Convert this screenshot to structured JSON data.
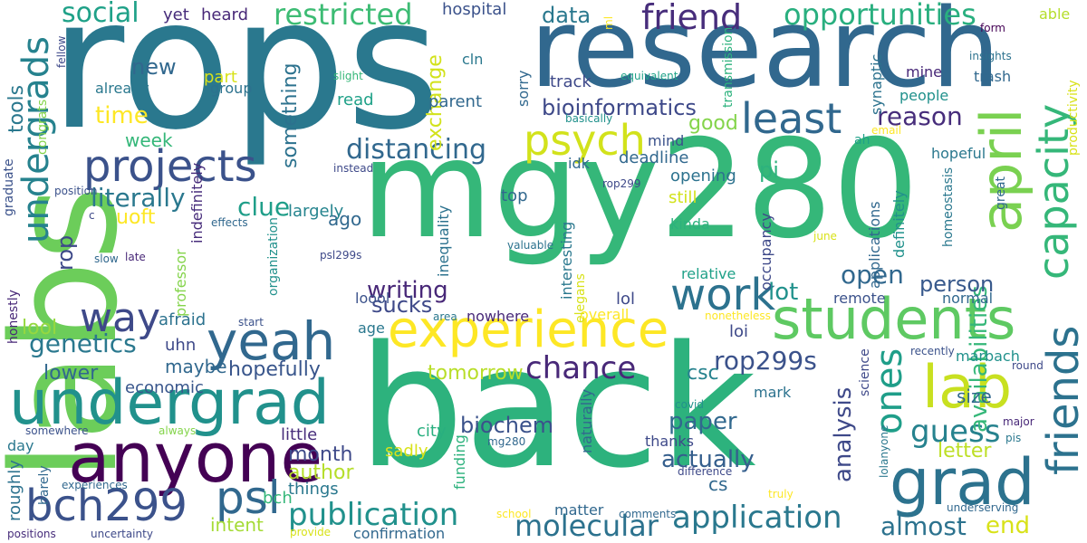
{
  "words": [
    {
      "text": "rops",
      "color": "#2a788e"
    },
    {
      "text": "labs",
      "color": "#6ccd5a"
    },
    {
      "text": "back",
      "color": "#2db27d"
    },
    {
      "text": "mgy280",
      "color": "#35b779"
    },
    {
      "text": "research",
      "color": "#31688e"
    },
    {
      "text": "anyone",
      "color": "#440154"
    },
    {
      "text": "undergrad",
      "color": "#21918c"
    },
    {
      "text": "experience",
      "color": "#fde725"
    },
    {
      "text": "students",
      "color": "#5ec962"
    },
    {
      "text": "lab",
      "color": "#c8e020"
    },
    {
      "text": "yeah",
      "color": "#31688e"
    },
    {
      "text": "april",
      "color": "#7ad151"
    },
    {
      "text": "capacity",
      "color": "#35b779"
    },
    {
      "text": "friends",
      "color": "#2c728e"
    },
    {
      "text": "grad",
      "color": "#2c728e"
    },
    {
      "text": "projects",
      "color": "#3b528b"
    },
    {
      "text": "psych",
      "color": "#d2e21b"
    },
    {
      "text": "work",
      "color": "#2c728e"
    },
    {
      "text": "least",
      "color": "#31688e"
    },
    {
      "text": "bch299",
      "color": "#3b528b"
    },
    {
      "text": "psl",
      "color": "#31688e"
    },
    {
      "text": "way",
      "color": "#3e4989"
    },
    {
      "text": "undergrads",
      "color": "#26828e"
    },
    {
      "text": "ones",
      "color": "#1f9e89"
    },
    {
      "text": "friend",
      "color": "#472d7b"
    },
    {
      "text": "restricted",
      "color": "#3dbc74"
    },
    {
      "text": "opportunities",
      "color": "#29af7f"
    },
    {
      "text": "social",
      "color": "#1fa188"
    },
    {
      "text": "chance",
      "color": "#482878"
    },
    {
      "text": "application",
      "color": "#2a788e"
    },
    {
      "text": "publication",
      "color": "#21918c"
    },
    {
      "text": "molecular",
      "color": "#2c728e"
    },
    {
      "text": "guess",
      "color": "#26828e"
    },
    {
      "text": "distancing",
      "color": "#31688e"
    },
    {
      "text": "genetics",
      "color": "#2a788e"
    },
    {
      "text": "availabilities",
      "color": "#35b779"
    },
    {
      "text": "rop299s",
      "color": "#3b528b"
    },
    {
      "text": "analysis",
      "color": "#3e4989"
    },
    {
      "text": "open",
      "color": "#31688e"
    },
    {
      "text": "time",
      "color": "#fde725"
    },
    {
      "text": "literally",
      "color": "#2a788e"
    },
    {
      "text": "clue",
      "color": "#1f9e89"
    },
    {
      "text": "writing",
      "color": "#482878"
    },
    {
      "text": "reason",
      "color": "#472d7b"
    },
    {
      "text": "almost",
      "color": "#2c728e"
    },
    {
      "text": "end",
      "color": "#d8e219"
    },
    {
      "text": "paper",
      "color": "#31688e"
    },
    {
      "text": "hopefully",
      "color": "#39568c"
    },
    {
      "text": "sucks",
      "color": "#3e4989"
    },
    {
      "text": "actually",
      "color": "#355f8d"
    },
    {
      "text": "lot",
      "color": "#21918c"
    },
    {
      "text": "person",
      "color": "#38598c"
    },
    {
      "text": "new",
      "color": "#31688e"
    },
    {
      "text": "data",
      "color": "#2a788e"
    },
    {
      "text": "exchange",
      "color": "#d2e21b"
    },
    {
      "text": "bioinformatics",
      "color": "#3e4989"
    },
    {
      "text": "tomorrow",
      "color": "#b8de29"
    },
    {
      "text": "rop",
      "color": "#3e4989"
    },
    {
      "text": "uoft",
      "color": "#fde725"
    },
    {
      "text": "good",
      "color": "#84d44b"
    },
    {
      "text": "pi",
      "color": "#2db27d"
    },
    {
      "text": "biochem",
      "color": "#3b528b"
    },
    {
      "text": "author",
      "color": "#b5de2b"
    },
    {
      "text": "month",
      "color": "#3e4989"
    },
    {
      "text": "csc",
      "color": "#26828e"
    },
    {
      "text": "letter",
      "color": "#bddf26"
    },
    {
      "text": "size",
      "color": "#31688e"
    },
    {
      "text": "tools",
      "color": "#2a788e"
    },
    {
      "text": "week",
      "color": "#35b779"
    },
    {
      "text": "something",
      "color": "#2c728e"
    },
    {
      "text": "ago",
      "color": "#31688e"
    },
    {
      "text": "largely",
      "color": "#25848e"
    },
    {
      "text": "maybe",
      "color": "#31688e"
    },
    {
      "text": "uhn",
      "color": "#3e4989"
    },
    {
      "text": "lower",
      "color": "#31688e"
    },
    {
      "text": "lool",
      "color": "#95d840"
    },
    {
      "text": "afraid",
      "color": "#2c728e"
    },
    {
      "text": "economic",
      "color": "#39568c"
    },
    {
      "text": "little",
      "color": "#472d7b"
    },
    {
      "text": "things",
      "color": "#2a788e"
    },
    {
      "text": "intent",
      "color": "#a5db36"
    },
    {
      "text": "bch",
      "color": "#35b779"
    },
    {
      "text": "cs",
      "color": "#31688e"
    },
    {
      "text": "city",
      "color": "#29af7f"
    },
    {
      "text": "sadly",
      "color": "#d8e219"
    },
    {
      "text": "already",
      "color": "#2a788e"
    },
    {
      "text": "heard",
      "color": "#482878"
    },
    {
      "text": "yet",
      "color": "#472d7b"
    },
    {
      "text": "hospital",
      "color": "#3b528b"
    },
    {
      "text": "part",
      "color": "#d8e219"
    },
    {
      "text": "group",
      "color": "#2c728e"
    },
    {
      "text": "read",
      "color": "#1fa188"
    },
    {
      "text": "parent",
      "color": "#31688e"
    },
    {
      "text": "track",
      "color": "#3e4989"
    },
    {
      "text": "mind",
      "color": "#3b528b"
    },
    {
      "text": "deadline",
      "color": "#31688e"
    },
    {
      "text": "idk",
      "color": "#31688e"
    },
    {
      "text": "opening",
      "color": "#2c728e"
    },
    {
      "text": "still",
      "color": "#d2e21b"
    },
    {
      "text": "top",
      "color": "#31688e"
    },
    {
      "text": "kinda",
      "color": "#2db27d"
    },
    {
      "text": "relative",
      "color": "#1fa188"
    },
    {
      "text": "remote",
      "color": "#3b528b"
    },
    {
      "text": "normal",
      "color": "#31688e"
    },
    {
      "text": "lol",
      "color": "#3e4989"
    },
    {
      "text": "loi",
      "color": "#3e4989"
    },
    {
      "text": "overall",
      "color": "#fde725"
    },
    {
      "text": "nowhere",
      "color": "#482878"
    },
    {
      "text": "age",
      "color": "#2a788e"
    },
    {
      "text": "loool",
      "color": "#3b528b"
    },
    {
      "text": "people",
      "color": "#21918c"
    },
    {
      "text": "trash",
      "color": "#31688e"
    },
    {
      "text": "mine",
      "color": "#482878"
    },
    {
      "text": "insights",
      "color": "#2c728e"
    },
    {
      "text": "hopeful",
      "color": "#2a788e"
    },
    {
      "text": "ah",
      "color": "#1fa188"
    },
    {
      "text": "recently",
      "color": "#3b528b"
    },
    {
      "text": "marbach",
      "color": "#21918c"
    },
    {
      "text": "round",
      "color": "#3e4989"
    },
    {
      "text": "mark",
      "color": "#2c728e"
    },
    {
      "text": "thanks",
      "color": "#3e4989"
    },
    {
      "text": "funding",
      "color": "#2db27d"
    },
    {
      "text": "matter",
      "color": "#31688e"
    },
    {
      "text": "confirmation",
      "color": "#31688e"
    },
    {
      "text": "provide",
      "color": "#d8e219"
    },
    {
      "text": "comments",
      "color": "#31688e"
    },
    {
      "text": "difference",
      "color": "#3e4989"
    },
    {
      "text": "truly",
      "color": "#fde725"
    },
    {
      "text": "underserving",
      "color": "#31688e"
    },
    {
      "text": "major",
      "color": "#482878"
    },
    {
      "text": "pis",
      "color": "#2a788e"
    },
    {
      "text": "school",
      "color": "#fde725"
    },
    {
      "text": "mg280",
      "color": "#31688e"
    },
    {
      "text": "covid",
      "color": "#21918c"
    },
    {
      "text": "somewhere",
      "color": "#3b528b"
    },
    {
      "text": "always",
      "color": "#84d44b"
    },
    {
      "text": "day",
      "color": "#2a788e"
    },
    {
      "text": "roughly",
      "color": "#2c728e"
    },
    {
      "text": "barely",
      "color": "#31688e"
    },
    {
      "text": "experiences",
      "color": "#31688e"
    },
    {
      "text": "positions",
      "color": "#472d7b"
    },
    {
      "text": "uncertainty",
      "color": "#3e4989"
    },
    {
      "text": "late",
      "color": "#482878"
    },
    {
      "text": "slow",
      "color": "#31688e"
    },
    {
      "text": "effects",
      "color": "#31688e"
    },
    {
      "text": "position",
      "color": "#3b528b"
    },
    {
      "text": "instead",
      "color": "#3e4989"
    },
    {
      "text": "psl299s",
      "color": "#3e4989"
    },
    {
      "text": "start",
      "color": "#3b528b"
    },
    {
      "text": "area",
      "color": "#2a788e"
    },
    {
      "text": "valuable",
      "color": "#2c728e"
    },
    {
      "text": "june",
      "color": "#d8e219"
    },
    {
      "text": "nonetheless",
      "color": "#fde725"
    },
    {
      "text": "form",
      "color": "#440154"
    },
    {
      "text": "ml",
      "color": "#fde725"
    },
    {
      "text": "cln",
      "color": "#2a788e"
    },
    {
      "text": "sorry",
      "color": "#31688e"
    },
    {
      "text": "slight",
      "color": "#35b779"
    },
    {
      "text": "basically",
      "color": "#21918c"
    },
    {
      "text": "equivalent",
      "color": "#1fa188"
    },
    {
      "text": "email",
      "color": "#fde725"
    },
    {
      "text": "rop299",
      "color": "#3e4989"
    },
    {
      "text": "able",
      "color": "#b5de2b"
    },
    {
      "text": "c",
      "color": "#3e4989"
    },
    {
      "text": "transmission",
      "color": "#2db27d"
    },
    {
      "text": "synaptic",
      "color": "#2c728e"
    },
    {
      "text": "productivity",
      "color": "#d8e219"
    },
    {
      "text": "homeostasis",
      "color": "#2a788e"
    },
    {
      "text": "definitely",
      "color": "#21918c"
    },
    {
      "text": "applications",
      "color": "#31688e"
    },
    {
      "text": "occupancy",
      "color": "#3e4989"
    },
    {
      "text": "great",
      "color": "#31688e"
    },
    {
      "text": "science",
      "color": "#3e4989"
    },
    {
      "text": "lolanyone",
      "color": "#2a788e"
    },
    {
      "text": "inequality",
      "color": "#2c728e"
    },
    {
      "text": "interesting",
      "color": "#2a788e"
    },
    {
      "text": "elegans",
      "color": "#d8e219"
    },
    {
      "text": "organization",
      "color": "#21918c"
    },
    {
      "text": "naturally",
      "color": "#31688e"
    },
    {
      "text": "professor",
      "color": "#84d44b"
    },
    {
      "text": "indefinitely",
      "color": "#472d7b"
    },
    {
      "text": "graduate",
      "color": "#3b528b"
    },
    {
      "text": "congrats",
      "color": "#84d44b"
    },
    {
      "text": "fellow",
      "color": "#3e4989"
    },
    {
      "text": "honestly",
      "color": "#482878"
    }
  ]
}
